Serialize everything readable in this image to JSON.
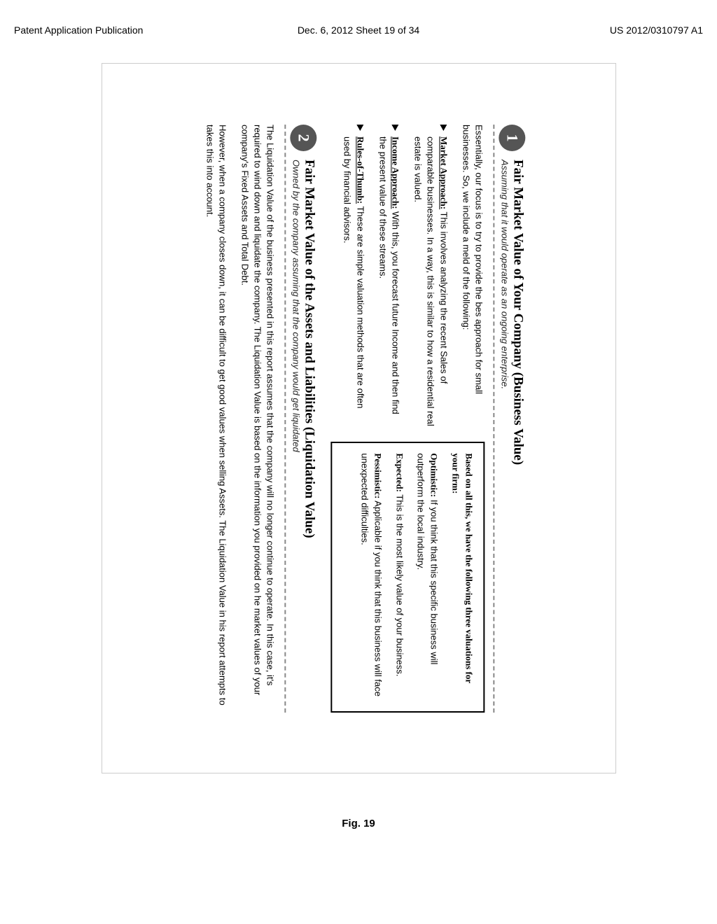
{
  "header": {
    "left": "Patent Application Publication",
    "center": "Dec. 6, 2012  Sheet 19 of 34",
    "right": "US 2012/0310797 A1"
  },
  "section1": {
    "badge": "1",
    "title": "Fair Market Value of Your Company (Business Value)",
    "subtitle": "Assuming that it would operate as an ongoing enterprise.",
    "intro": "Essentially, our focus is to try to provide the bes approach for small businesses. So, we include a meld of the following:",
    "bullets": [
      {
        "label": "Market Approach:",
        "text": " This involves analyzing the recent Sales of comparable businesses. In a way, this is similar to how a residential real estate is valued."
      },
      {
        "label": "Income Approach:",
        "text": " With this, you forecast future Income and then find the present value of these streams."
      },
      {
        "label": "Rules-of-Thumb:",
        "text": " These are simple valuation methods that are often used by financial advisors."
      }
    ],
    "box_head": "Based on all this, we have the following three valuations for your firm:",
    "box_items": [
      {
        "label": "Optimistic:",
        "text": " If you think that this specific business will outperform the local industry."
      },
      {
        "label": "Expected:",
        "text": " This is the most likely value of your business."
      },
      {
        "label": "Pessimistic:",
        "text": " Applicable if you think that this business will face unexpected difficulties."
      }
    ]
  },
  "section2": {
    "badge": "2",
    "title": "Fair Market Value of the Assets and Liabilities (Liquidation Value)",
    "subtitle": "Owned by the company assuming that the company would get liquidated",
    "para1": "The Liquidation Value of the business presented in this report assumes that the company will no longer continue to operate. In this case, it's required to wind down and liquidate the company. The Liquidation Value is based on the information you provided on he market values of your company's Fixed Assets and Total Debt.",
    "para2": "However, when a company closes down, it can be difficult to get good values when selling Assets. The Liquidation Value in his report attempts to takes this into account."
  },
  "figure_label": "Fig. 19"
}
